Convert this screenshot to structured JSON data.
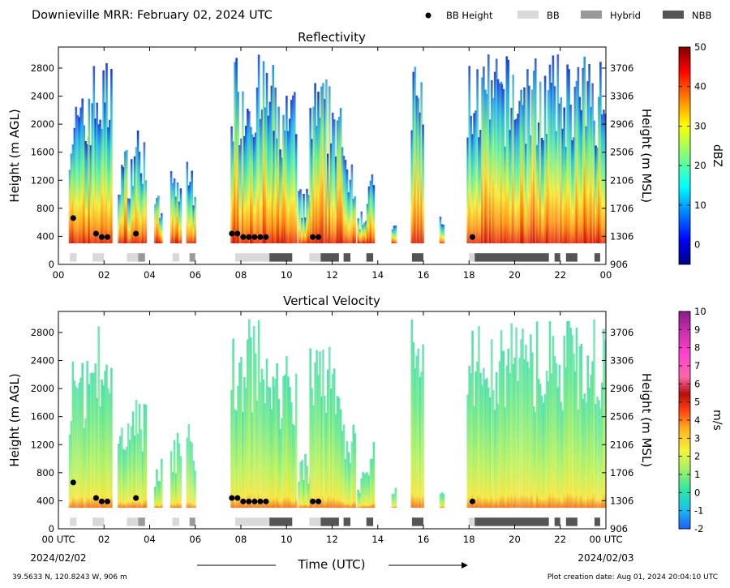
{
  "header": {
    "title": "Downieville MRR:  February 02, 2024 UTC",
    "legend": [
      {
        "label": "BB Height",
        "kind": "dot",
        "color": "#000000"
      },
      {
        "label": "BB",
        "kind": "box",
        "color": "#d9d9d9"
      },
      {
        "label": "Hybrid",
        "kind": "box",
        "color": "#999999"
      },
      {
        "label": "NBB",
        "kind": "box",
        "color": "#555555"
      }
    ]
  },
  "footer": {
    "location": "39.5633 N, 120.8243 W, 906 m",
    "created": "Plot creation date: Aug 01, 2024 20:04:10 UTC",
    "xlabel": "Time (UTC)",
    "start_date": "2024/02/02",
    "end_date": "2024/02/03"
  },
  "chart_data": [
    {
      "type": "heatmap",
      "title": "Reflectivity",
      "ylabel": "Height (m AGL)",
      "ylabel_right": "Height (m MSL)",
      "xlim": [
        0,
        24
      ],
      "ylim": [
        0,
        3100
      ],
      "x_ticks": [
        "00",
        "02",
        "04",
        "06",
        "08",
        "10",
        "12",
        "14",
        "16",
        "18",
        "20",
        "22",
        "00"
      ],
      "y_ticks": [
        0,
        400,
        800,
        1200,
        1600,
        2000,
        2400,
        2800
      ],
      "y_ticks_right": [
        906,
        1306,
        1706,
        2106,
        2506,
        2906,
        3306,
        3706
      ],
      "colorbar": {
        "label": "dBZ",
        "min": -5,
        "max": 50,
        "ticks": [
          0,
          10,
          20,
          30,
          40,
          50
        ]
      },
      "bb_height_points": [
        {
          "t": 0.65,
          "h": 660
        },
        {
          "t": 1.65,
          "h": 440
        },
        {
          "t": 1.9,
          "h": 390
        },
        {
          "t": 2.15,
          "h": 390
        },
        {
          "t": 3.4,
          "h": 440
        },
        {
          "t": 7.6,
          "h": 440
        },
        {
          "t": 7.85,
          "h": 440
        },
        {
          "t": 8.1,
          "h": 390
        },
        {
          "t": 8.35,
          "h": 390
        },
        {
          "t": 8.6,
          "h": 390
        },
        {
          "t": 8.85,
          "h": 390
        },
        {
          "t": 9.1,
          "h": 390
        },
        {
          "t": 11.15,
          "h": 390
        },
        {
          "t": 11.4,
          "h": 390
        },
        {
          "t": 18.15,
          "h": 390
        }
      ],
      "bb_type_segments": [
        {
          "start": 0.5,
          "end": 0.8,
          "type": "BB"
        },
        {
          "start": 1.5,
          "end": 2.0,
          "type": "BB"
        },
        {
          "start": 3.0,
          "end": 3.5,
          "type": "BB"
        },
        {
          "start": 3.5,
          "end": 3.8,
          "type": "Hybrid"
        },
        {
          "start": 5.0,
          "end": 5.3,
          "type": "BB"
        },
        {
          "start": 5.75,
          "end": 6.0,
          "type": "Hybrid"
        },
        {
          "start": 7.75,
          "end": 9.25,
          "type": "BB"
        },
        {
          "start": 9.25,
          "end": 10.25,
          "type": "NBB"
        },
        {
          "start": 11.0,
          "end": 11.5,
          "type": "BB"
        },
        {
          "start": 11.5,
          "end": 12.3,
          "type": "NBB"
        },
        {
          "start": 12.5,
          "end": 12.8,
          "type": "NBB"
        },
        {
          "start": 13.5,
          "end": 13.8,
          "type": "NBB"
        },
        {
          "start": 15.5,
          "end": 16.0,
          "type": "NBB"
        },
        {
          "start": 18.0,
          "end": 18.25,
          "type": "BB"
        },
        {
          "start": 18.25,
          "end": 21.5,
          "type": "NBB"
        },
        {
          "start": 21.75,
          "end": 22.0,
          "type": "NBB"
        },
        {
          "start": 22.25,
          "end": 22.75,
          "type": "NBB"
        },
        {
          "start": 23.5,
          "end": 23.75,
          "type": "NBB"
        }
      ]
    },
    {
      "type": "heatmap",
      "title": "Vertical Velocity",
      "ylabel": "Height (m AGL)",
      "ylabel_right": "Height (m MSL)",
      "xlim": [
        0,
        24
      ],
      "ylim": [
        0,
        3100
      ],
      "x_ticks": [
        "00 UTC",
        "02",
        "04",
        "06",
        "08",
        "10",
        "12",
        "14",
        "16",
        "18",
        "20",
        "22",
        "00 UTC"
      ],
      "y_ticks": [
        0,
        400,
        800,
        1200,
        1600,
        2000,
        2400,
        2800
      ],
      "y_ticks_right": [
        906,
        1306,
        1706,
        2106,
        2506,
        2906,
        3306,
        3706
      ],
      "colorbar": {
        "label": "m/s",
        "min": -2,
        "max": 10,
        "ticks": [
          -2,
          -1,
          0,
          1,
          2,
          3,
          4,
          5,
          6,
          7,
          8,
          9,
          10
        ]
      },
      "bb_height_points": [
        {
          "t": 0.65,
          "h": 660
        },
        {
          "t": 1.65,
          "h": 440
        },
        {
          "t": 1.9,
          "h": 390
        },
        {
          "t": 2.15,
          "h": 390
        },
        {
          "t": 3.4,
          "h": 440
        },
        {
          "t": 7.6,
          "h": 440
        },
        {
          "t": 7.85,
          "h": 440
        },
        {
          "t": 8.1,
          "h": 390
        },
        {
          "t": 8.35,
          "h": 390
        },
        {
          "t": 8.6,
          "h": 390
        },
        {
          "t": 8.85,
          "h": 390
        },
        {
          "t": 9.1,
          "h": 390
        },
        {
          "t": 11.15,
          "h": 390
        },
        {
          "t": 11.4,
          "h": 390
        },
        {
          "t": 18.15,
          "h": 390
        }
      ],
      "bb_type_segments": [
        {
          "start": 0.5,
          "end": 0.8,
          "type": "BB"
        },
        {
          "start": 1.5,
          "end": 2.0,
          "type": "BB"
        },
        {
          "start": 3.0,
          "end": 3.5,
          "type": "BB"
        },
        {
          "start": 3.5,
          "end": 3.8,
          "type": "Hybrid"
        },
        {
          "start": 5.0,
          "end": 5.3,
          "type": "BB"
        },
        {
          "start": 5.75,
          "end": 6.0,
          "type": "Hybrid"
        },
        {
          "start": 7.75,
          "end": 9.25,
          "type": "BB"
        },
        {
          "start": 9.25,
          "end": 10.25,
          "type": "NBB"
        },
        {
          "start": 11.0,
          "end": 11.5,
          "type": "BB"
        },
        {
          "start": 11.5,
          "end": 12.3,
          "type": "NBB"
        },
        {
          "start": 12.5,
          "end": 12.8,
          "type": "NBB"
        },
        {
          "start": 13.5,
          "end": 13.8,
          "type": "NBB"
        },
        {
          "start": 15.5,
          "end": 16.0,
          "type": "NBB"
        },
        {
          "start": 18.0,
          "end": 18.25,
          "type": "BB"
        },
        {
          "start": 18.25,
          "end": 21.5,
          "type": "NBB"
        },
        {
          "start": 21.75,
          "end": 22.0,
          "type": "NBB"
        },
        {
          "start": 22.25,
          "end": 22.75,
          "type": "NBB"
        },
        {
          "start": 23.5,
          "end": 23.75,
          "type": "NBB"
        }
      ]
    }
  ]
}
